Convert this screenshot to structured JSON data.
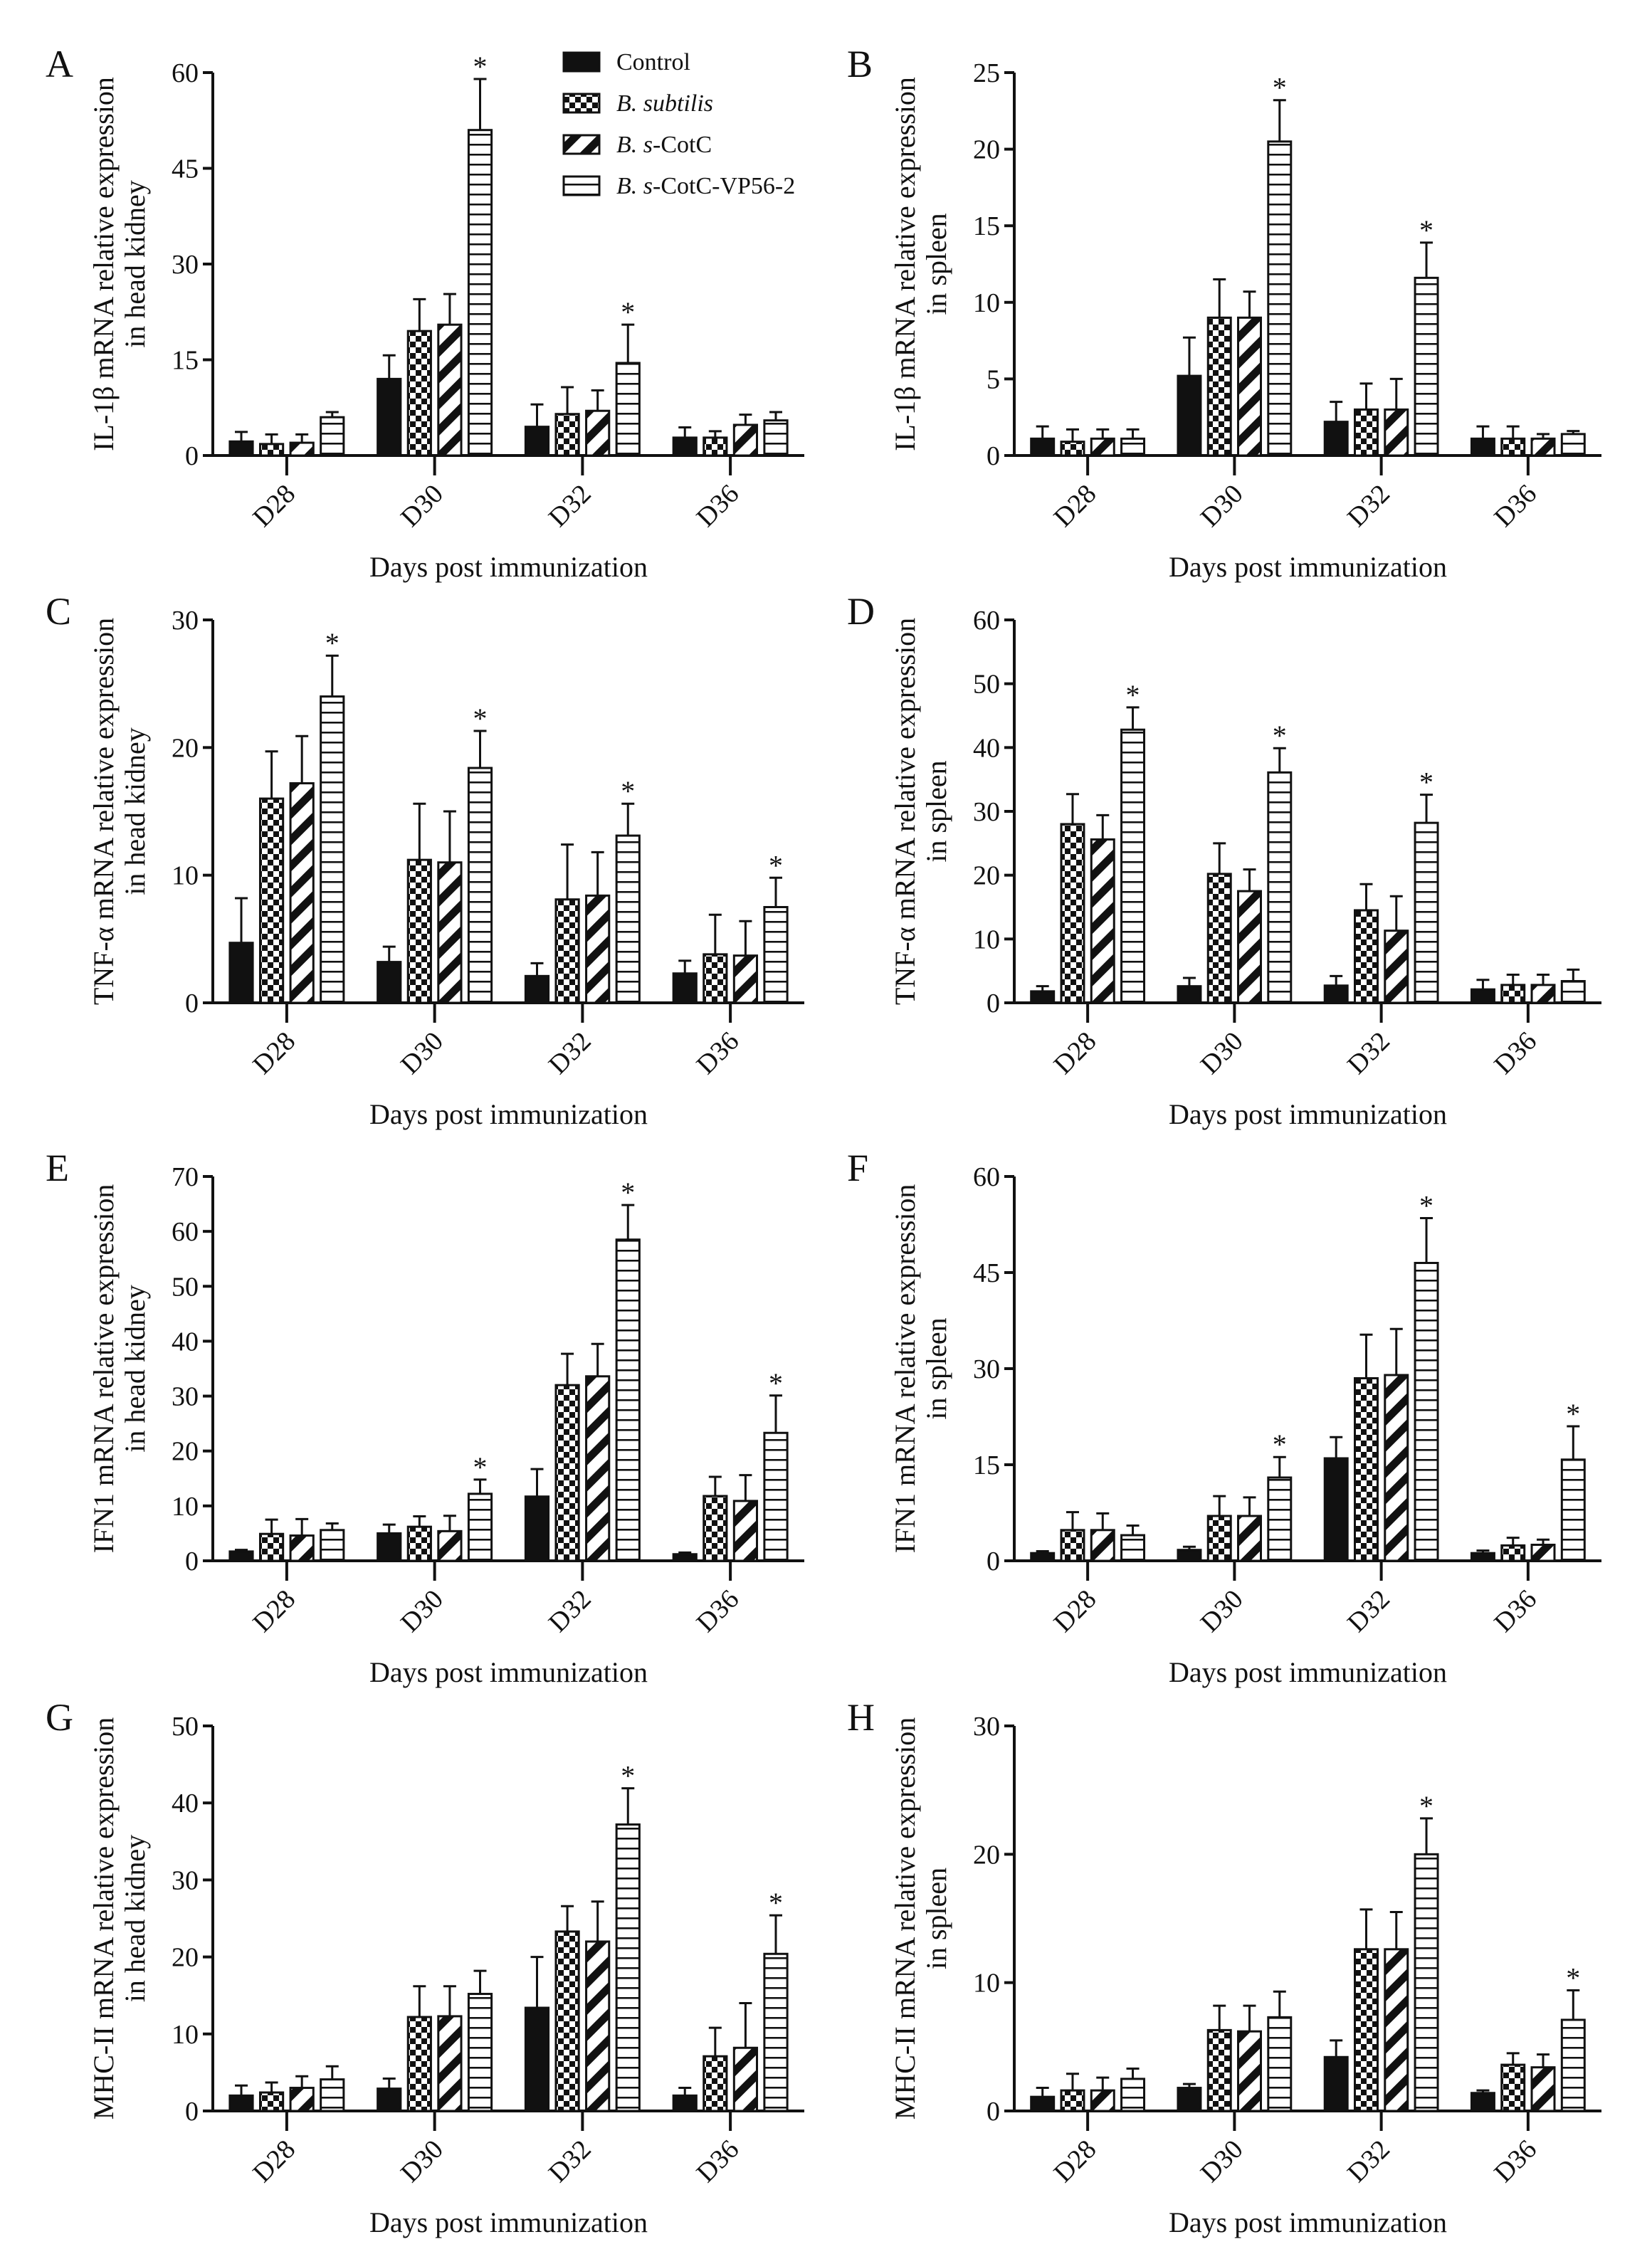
{
  "legend": [
    {
      "italic": "",
      "rest": "Control",
      "pattern": "solid"
    },
    {
      "italic": "B. subtilis",
      "rest": "",
      "pattern": "checker"
    },
    {
      "italic": "B. s",
      "rest": "-CotC",
      "pattern": "diagonal"
    },
    {
      "italic": "B. s",
      "rest": "-CotC-VP56-2",
      "pattern": "horizontal"
    }
  ],
  "colors": {
    "ink": "#111111",
    "background": "#ffffff"
  },
  "chart_data": [
    {
      "type": "bar",
      "panel": "A",
      "ylabel": [
        "IL-1β mRNA relative expression",
        "in head kidney"
      ],
      "xlabel": "Days post immunization",
      "categories": [
        "D28",
        "D30",
        "D32",
        "D36"
      ],
      "ylim": [
        0,
        60
      ],
      "yticks": [
        0,
        15,
        30,
        45,
        60
      ],
      "series": [
        {
          "name": "Control",
          "values": [
            2.2,
            12,
            4.5,
            2.8
          ],
          "errors": [
            1.5,
            3.7,
            3.5,
            1.6
          ]
        },
        {
          "name": "B. subtilis",
          "values": [
            1.8,
            19.5,
            6.5,
            2.8
          ],
          "errors": [
            1.5,
            5,
            4.2,
            1
          ]
        },
        {
          "name": "B. s-CotC",
          "values": [
            2,
            20.5,
            7,
            4.8
          ],
          "errors": [
            1.3,
            4.8,
            3.2,
            1.6
          ]
        },
        {
          "name": "B. s-CotC-VP56-2",
          "values": [
            6,
            51,
            14.5,
            5.5
          ],
          "errors": [
            0.8,
            8,
            6,
            1.3
          ],
          "significant": [
            false,
            true,
            true,
            false
          ]
        }
      ]
    },
    {
      "type": "bar",
      "panel": "B",
      "ylabel": [
        "IL-1β mRNA relative expression",
        "in spleen"
      ],
      "xlabel": "Days post immunization",
      "categories": [
        "D28",
        "D30",
        "D32",
        "D36"
      ],
      "ylim": [
        0,
        25
      ],
      "yticks": [
        0,
        5,
        10,
        15,
        20,
        25
      ],
      "series": [
        {
          "name": "Control",
          "values": [
            1.1,
            5.2,
            2.2,
            1.1
          ],
          "errors": [
            0.8,
            2.5,
            1.3,
            0.8
          ]
        },
        {
          "name": "B. subtilis",
          "values": [
            0.9,
            9,
            3,
            1.1
          ],
          "errors": [
            0.8,
            2.5,
            1.7,
            0.8
          ]
        },
        {
          "name": "B. s-CotC",
          "values": [
            1.1,
            9,
            3,
            1.1
          ],
          "errors": [
            0.6,
            1.7,
            2,
            0.3
          ]
        },
        {
          "name": "B. s-CotC-VP56-2",
          "values": [
            1.1,
            20.5,
            11.6,
            1.4
          ],
          "errors": [
            0.6,
            2.7,
            2.3,
            0.2
          ],
          "significant": [
            false,
            true,
            true,
            false
          ]
        }
      ]
    },
    {
      "type": "bar",
      "panel": "C",
      "ylabel": [
        "TNF-α mRNA relative expression",
        "in head kidney"
      ],
      "xlabel": "Days post immunization",
      "categories": [
        "D28",
        "D30",
        "D32",
        "D36"
      ],
      "ylim": [
        0,
        30
      ],
      "yticks": [
        0,
        10,
        20,
        30
      ],
      "series": [
        {
          "name": "Control",
          "values": [
            4.7,
            3.2,
            2.1,
            2.3
          ],
          "errors": [
            3.5,
            1.2,
            1,
            1
          ]
        },
        {
          "name": "B. subtilis",
          "values": [
            16,
            11.2,
            8.1,
            3.8
          ],
          "errors": [
            3.7,
            4.4,
            4.3,
            3.1
          ]
        },
        {
          "name": "B. s-CotC",
          "values": [
            17.2,
            11,
            8.4,
            3.7
          ],
          "errors": [
            3.7,
            4,
            3.4,
            2.7
          ]
        },
        {
          "name": "B. s-CotC-VP56-2",
          "values": [
            24,
            18.4,
            13.1,
            7.5
          ],
          "errors": [
            3.2,
            2.9,
            2.5,
            2.3
          ],
          "significant": [
            true,
            true,
            true,
            true
          ]
        }
      ]
    },
    {
      "type": "bar",
      "panel": "D",
      "ylabel": [
        "TNF-α mRNA relative expression",
        "in spleen"
      ],
      "xlabel": "Days post immunization",
      "categories": [
        "D28",
        "D30",
        "D32",
        "D36"
      ],
      "ylim": [
        0,
        60
      ],
      "yticks": [
        0,
        10,
        20,
        30,
        40,
        50,
        60
      ],
      "series": [
        {
          "name": "Control",
          "values": [
            1.8,
            2.6,
            2.7,
            2.1
          ],
          "errors": [
            0.8,
            1.3,
            1.5,
            1.5
          ]
        },
        {
          "name": "B. subtilis",
          "values": [
            28,
            20.2,
            14.5,
            2.8
          ],
          "errors": [
            4.7,
            4.8,
            4.1,
            1.6
          ]
        },
        {
          "name": "B. s-CotC",
          "values": [
            25.6,
            17.5,
            11.3,
            2.8
          ],
          "errors": [
            3.8,
            3.4,
            5.4,
            1.6
          ]
        },
        {
          "name": "B. s-CotC-VP56-2",
          "values": [
            42.8,
            36.1,
            28.2,
            3.4
          ],
          "errors": [
            3.5,
            3.8,
            4.4,
            1.8
          ],
          "significant": [
            true,
            true,
            true,
            false
          ]
        }
      ]
    },
    {
      "type": "bar",
      "panel": "E",
      "ylabel": [
        "IFN1 mRNA relative expression",
        "in head kidney"
      ],
      "xlabel": "Days post immunization",
      "categories": [
        "D28",
        "D30",
        "D32",
        "D36"
      ],
      "ylim": [
        0,
        70
      ],
      "yticks": [
        0,
        10,
        20,
        30,
        40,
        50,
        60,
        70
      ],
      "series": [
        {
          "name": "Control",
          "values": [
            1.7,
            5,
            11.7,
            1.2
          ],
          "errors": [
            0.3,
            1.6,
            5,
            0.3
          ]
        },
        {
          "name": "B. subtilis",
          "values": [
            4.9,
            6.2,
            32,
            11.8
          ],
          "errors": [
            2.6,
            1.9,
            5.7,
            3.5
          ]
        },
        {
          "name": "B. s-CotC",
          "values": [
            4.6,
            5.4,
            33.6,
            10.9
          ],
          "errors": [
            3,
            2.8,
            5.9,
            4.7
          ]
        },
        {
          "name": "B. s-CotC-VP56-2",
          "values": [
            5.6,
            12.2,
            58.5,
            23.3
          ],
          "errors": [
            1.2,
            2.6,
            6.3,
            6.8
          ],
          "significant": [
            false,
            true,
            true,
            true
          ]
        }
      ]
    },
    {
      "type": "bar",
      "panel": "F",
      "ylabel": [
        "IFN1 mRNA relative expression",
        "in spleen"
      ],
      "xlabel": "Days post immunization",
      "categories": [
        "D28",
        "D30",
        "D32",
        "D36"
      ],
      "ylim": [
        0,
        60
      ],
      "yticks": [
        0,
        15,
        30,
        45,
        60
      ],
      "series": [
        {
          "name": "Control",
          "values": [
            1.2,
            1.7,
            16,
            1.2
          ],
          "errors": [
            0.3,
            0.5,
            3.3,
            0.4
          ]
        },
        {
          "name": "B. subtilis",
          "values": [
            4.8,
            7,
            28.5,
            2.4
          ],
          "errors": [
            2.8,
            3.1,
            6.8,
            1.2
          ]
        },
        {
          "name": "B. s-CotC",
          "values": [
            4.8,
            7,
            29,
            2.5
          ],
          "errors": [
            2.6,
            2.9,
            7.2,
            0.8
          ]
        },
        {
          "name": "B. s-CotC-VP56-2",
          "values": [
            4,
            13,
            46.5,
            15.8
          ],
          "errors": [
            1.5,
            3.2,
            7,
            5.2
          ],
          "significant": [
            false,
            true,
            true,
            true
          ]
        }
      ]
    },
    {
      "type": "bar",
      "panel": "G",
      "ylabel": [
        "MHC-II mRNA relative expression",
        "in head kidney"
      ],
      "xlabel": "Days post immunization",
      "categories": [
        "D28",
        "D30",
        "D32",
        "D36"
      ],
      "ylim": [
        0,
        50
      ],
      "yticks": [
        0,
        10,
        20,
        30,
        40,
        50
      ],
      "series": [
        {
          "name": "Control",
          "values": [
            2,
            2.9,
            13.4,
            2
          ],
          "errors": [
            1.3,
            1.3,
            6.6,
            1
          ]
        },
        {
          "name": "B. subtilis",
          "values": [
            2.4,
            12.2,
            23.3,
            7.1
          ],
          "errors": [
            1.3,
            4,
            3.3,
            3.7
          ]
        },
        {
          "name": "B. s-CotC",
          "values": [
            3,
            12.3,
            22,
            8.2
          ],
          "errors": [
            1.5,
            3.9,
            5.2,
            5.8
          ]
        },
        {
          "name": "B. s-CotC-VP56-2",
          "values": [
            4.1,
            15.2,
            37.2,
            20.4
          ],
          "errors": [
            1.7,
            3,
            4.7,
            5
          ],
          "significant": [
            false,
            false,
            true,
            true
          ]
        }
      ]
    },
    {
      "type": "bar",
      "panel": "H",
      "ylabel": [
        "MHC-II mRNA relative expression",
        "in spleen"
      ],
      "xlabel": "Days post immunization",
      "categories": [
        "D28",
        "D30",
        "D32",
        "D36"
      ],
      "ylim": [
        0,
        30
      ],
      "yticks": [
        0,
        10,
        20,
        30
      ],
      "series": [
        {
          "name": "Control",
          "values": [
            1.1,
            1.8,
            4.2,
            1.4
          ],
          "errors": [
            0.7,
            0.3,
            1.3,
            0.2
          ]
        },
        {
          "name": "B. subtilis",
          "values": [
            1.6,
            6.3,
            12.6,
            3.6
          ],
          "errors": [
            1.3,
            1.9,
            3.1,
            0.9
          ]
        },
        {
          "name": "B. s-CotC",
          "values": [
            1.6,
            6.2,
            12.6,
            3.4
          ],
          "errors": [
            1,
            2,
            2.9,
            1
          ]
        },
        {
          "name": "B. s-CotC-VP56-2",
          "values": [
            2.5,
            7.3,
            20,
            7.1
          ],
          "errors": [
            0.8,
            2,
            2.8,
            2.3
          ],
          "significant": [
            false,
            false,
            true,
            true
          ]
        }
      ]
    }
  ],
  "significance_marker": "*"
}
